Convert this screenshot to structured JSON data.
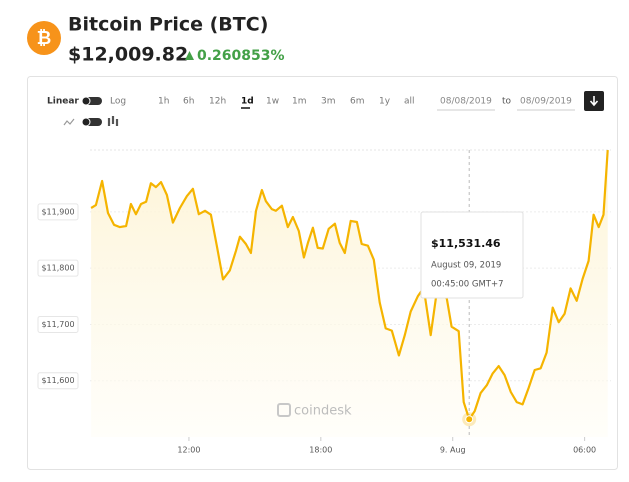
{
  "header": {
    "title": "Bitcoin Price (BTC)",
    "price": "$12,009.82",
    "change": "0.260853%"
  },
  "controls": {
    "scales": [
      "Linear",
      "Log"
    ],
    "intervals": [
      "1h",
      "6h",
      "12h",
      "1d",
      "1w",
      "1m",
      "3m",
      "6m",
      "1y",
      "all"
    ],
    "from": "08/08/2019",
    "to_label": "to",
    "to": "08/09/2019"
  },
  "watermark": "coindesk",
  "chart_data": {
    "type": "line",
    "color": "#f5b400",
    "grid": true,
    "x": [
      7.55,
      7.77,
      8.05,
      8.32,
      8.59,
      8.86,
      9.14,
      9.36,
      9.59,
      9.82,
      10.05,
      10.27,
      10.5,
      10.73,
      11.0,
      11.27,
      11.59,
      11.91,
      12.18,
      12.45,
      12.73,
      13.0,
      13.27,
      13.55,
      13.86,
      14.14,
      14.32,
      14.59,
      14.82,
      15.05,
      15.32,
      15.5,
      15.77,
      15.95,
      16.23,
      16.5,
      16.73,
      17.0,
      17.23,
      17.41,
      17.64,
      17.86,
      18.09,
      18.36,
      18.64,
      18.86,
      19.09,
      19.36,
      19.64,
      19.86,
      20.14,
      20.41,
      20.68,
      20.95,
      21.23,
      21.55,
      21.82,
      22.09,
      22.41,
      22.68,
      23.0,
      23.27,
      23.5,
      23.73,
      23.95,
      24.27,
      24.5,
      24.75,
      25.0,
      25.27,
      25.55,
      25.82,
      26.09,
      26.36,
      26.64,
      26.91,
      27.18,
      27.45,
      27.73,
      28.0,
      28.27,
      28.55,
      28.82,
      29.09,
      29.36,
      29.64,
      29.91,
      30.18,
      30.41,
      30.64,
      30.86,
      31.05
    ],
    "values": [
      11907,
      11912,
      11955,
      11898,
      11877,
      11873,
      11875,
      11914,
      11896,
      11914,
      11918,
      11951,
      11944,
      11953,
      11930,
      11881,
      11907,
      11928,
      11941,
      11896,
      11902,
      11895,
      11840,
      11780,
      11796,
      11831,
      11856,
      11843,
      11827,
      11902,
      11939,
      11919,
      11905,
      11902,
      11911,
      11873,
      11891,
      11866,
      11819,
      11845,
      11872,
      11836,
      11835,
      11870,
      11879,
      11845,
      11827,
      11884,
      11882,
      11843,
      11840,
      11815,
      11739,
      11693,
      11689,
      11645,
      11681,
      11723,
      11750,
      11765,
      11681,
      11757,
      11758,
      11746,
      11696,
      11688,
      11562,
      11531.46,
      11546,
      11578,
      11592,
      11613,
      11626,
      11610,
      11580,
      11562,
      11558,
      11587,
      11619,
      11622,
      11650,
      11730,
      11704,
      11719,
      11764,
      11742,
      11781,
      11813,
      11895,
      11873,
      11895,
      12009.82
    ],
    "xlim": [
      7.5,
      31.2
    ],
    "ylim": [
      11500,
      12010
    ],
    "xticks": [
      {
        "value": 12,
        "label": "12:00"
      },
      {
        "value": 18,
        "label": "18:00"
      },
      {
        "value": 24,
        "label": "9. Aug"
      },
      {
        "value": 30,
        "label": "06:00"
      }
    ],
    "yticks": [
      {
        "value": 11600,
        "label": "$11,600"
      },
      {
        "value": 11700,
        "label": "$11,700"
      },
      {
        "value": 11800,
        "label": "$11,800"
      },
      {
        "value": 11900,
        "label": "$11,900"
      }
    ],
    "tooltip": {
      "value": "$11,531.46",
      "date": "August 09, 2019",
      "time": "00:45:00 GMT+7"
    }
  }
}
